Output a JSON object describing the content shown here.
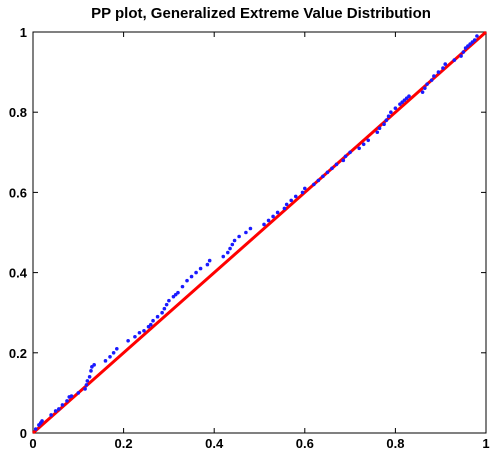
{
  "chart_data": {
    "type": "scatter",
    "title": "PP plot, Generalized Extreme Value Distribution",
    "xlabel": "",
    "ylabel": "",
    "xlim": [
      0,
      1
    ],
    "ylim": [
      0,
      1
    ],
    "xticks": [
      "0",
      "0.2",
      "0.4",
      "0.6",
      "0.8",
      "1"
    ],
    "yticks": [
      "0",
      "0.2",
      "0.4",
      "0.6",
      "0.8",
      "1"
    ],
    "grid": false,
    "legend": "none",
    "colors": {
      "points": "#1a1aff",
      "reference_line": "#ff0000",
      "axes": "#000000",
      "background": "#ffffff"
    },
    "series": [
      {
        "kind": "points",
        "x": [
          0.006,
          0.013,
          0.017,
          0.02,
          0.04,
          0.05,
          0.057,
          0.065,
          0.075,
          0.08,
          0.085,
          0.1,
          0.115,
          0.118,
          0.12,
          0.125,
          0.128,
          0.13,
          0.135,
          0.16,
          0.17,
          0.178,
          0.185,
          0.21,
          0.225,
          0.235,
          0.245,
          0.255,
          0.26,
          0.265,
          0.275,
          0.285,
          0.29,
          0.295,
          0.3,
          0.31,
          0.315,
          0.32,
          0.33,
          0.34,
          0.35,
          0.36,
          0.37,
          0.385,
          0.39,
          0.42,
          0.43,
          0.435,
          0.44,
          0.445,
          0.455,
          0.47,
          0.48,
          0.51,
          0.52,
          0.53,
          0.54,
          0.555,
          0.56,
          0.57,
          0.58,
          0.595,
          0.6,
          0.62,
          0.63,
          0.64,
          0.65,
          0.66,
          0.67,
          0.685,
          0.69,
          0.7,
          0.72,
          0.73,
          0.74,
          0.76,
          0.765,
          0.775,
          0.78,
          0.785,
          0.79,
          0.8,
          0.81,
          0.815,
          0.82,
          0.825,
          0.83,
          0.86,
          0.865,
          0.87,
          0.88,
          0.885,
          0.895,
          0.905,
          0.91,
          0.93,
          0.945,
          0.95,
          0.955,
          0.96,
          0.965,
          0.97,
          0.975,
          0.98
        ],
        "y": [
          0.01,
          0.02,
          0.025,
          0.03,
          0.045,
          0.055,
          0.06,
          0.07,
          0.08,
          0.09,
          0.092,
          0.1,
          0.11,
          0.12,
          0.13,
          0.14,
          0.155,
          0.165,
          0.17,
          0.18,
          0.19,
          0.2,
          0.21,
          0.23,
          0.24,
          0.25,
          0.255,
          0.265,
          0.27,
          0.28,
          0.29,
          0.3,
          0.31,
          0.32,
          0.33,
          0.34,
          0.345,
          0.35,
          0.365,
          0.38,
          0.39,
          0.4,
          0.41,
          0.42,
          0.43,
          0.44,
          0.45,
          0.46,
          0.47,
          0.48,
          0.49,
          0.5,
          0.51,
          0.52,
          0.53,
          0.54,
          0.55,
          0.56,
          0.57,
          0.58,
          0.59,
          0.6,
          0.61,
          0.62,
          0.63,
          0.64,
          0.65,
          0.66,
          0.67,
          0.68,
          0.69,
          0.7,
          0.71,
          0.72,
          0.73,
          0.75,
          0.76,
          0.77,
          0.78,
          0.79,
          0.8,
          0.81,
          0.82,
          0.825,
          0.83,
          0.835,
          0.84,
          0.85,
          0.86,
          0.87,
          0.88,
          0.89,
          0.9,
          0.91,
          0.92,
          0.93,
          0.94,
          0.95,
          0.96,
          0.965,
          0.97,
          0.975,
          0.98,
          0.99
        ]
      },
      {
        "kind": "line",
        "x": [
          0,
          1
        ],
        "y": [
          0,
          1
        ]
      }
    ]
  }
}
